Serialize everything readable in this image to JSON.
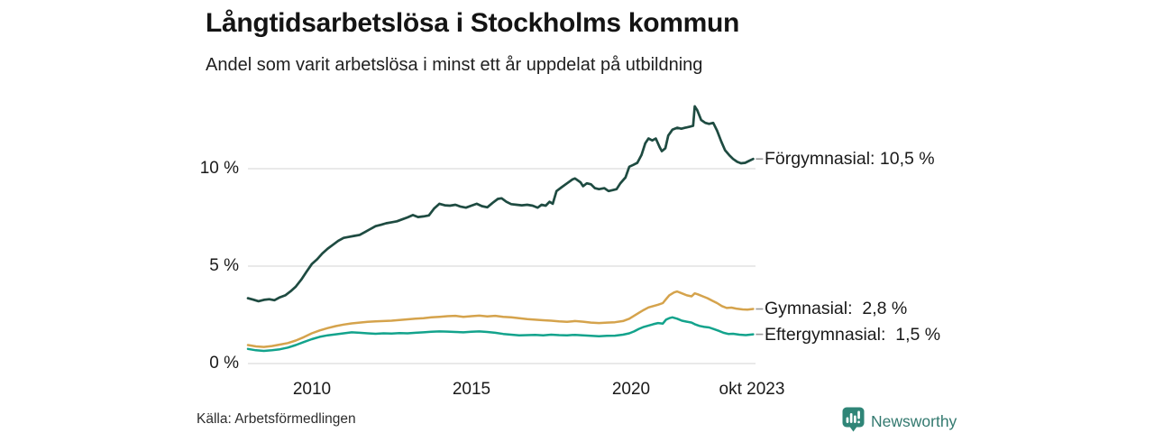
{
  "header": {
    "title": "Långtidsarbetslösa i Stockholms kommun",
    "subtitle": "Andel som varit arbetslösa i minst ett år uppdelat på utbildning"
  },
  "footer": {
    "source": "Källa: Arbetsförmedlingen",
    "brand_name": "Newsworthy",
    "brand_color": "#2F8577"
  },
  "colors": {
    "grid": "#DCDCDC",
    "connector": "#9B9B9B",
    "text": "#1A1A1A"
  },
  "chart_data": {
    "type": "line",
    "title": "Långtidsarbetslösa i Stockholms kommun",
    "subtitle": "Andel som varit arbetslösa i minst ett år uppdelat på utbildning",
    "xlabel": "",
    "ylabel": "",
    "grid": true,
    "legend_position": "end-of-line-labels",
    "x_domain": [
      2008.0,
      2023.83
    ],
    "ylim": [
      0,
      13.5
    ],
    "y_ticks": [
      {
        "value": 0,
        "label": "0 %"
      },
      {
        "value": 5,
        "label": "5 %"
      },
      {
        "value": 10,
        "label": "10 %"
      }
    ],
    "x_ticks": [
      {
        "value": 2010,
        "label": "2010"
      },
      {
        "value": 2015,
        "label": "2015"
      },
      {
        "value": 2020,
        "label": "2020"
      },
      {
        "value": 2023.79,
        "label": "okt 2023"
      }
    ],
    "series": [
      {
        "name": "Förgymnasial",
        "end_label": "Förgymnasial: 10,5 %",
        "last_value_label": "10,5 %",
        "color": "#1E4B41",
        "stroke_width": 2.7,
        "points": [
          [
            2008.0,
            3.35
          ],
          [
            2008.17,
            3.28
          ],
          [
            2008.33,
            3.2
          ],
          [
            2008.5,
            3.27
          ],
          [
            2008.67,
            3.3
          ],
          [
            2008.83,
            3.25
          ],
          [
            2009.0,
            3.4
          ],
          [
            2009.17,
            3.5
          ],
          [
            2009.33,
            3.7
          ],
          [
            2009.5,
            3.95
          ],
          [
            2009.67,
            4.3
          ],
          [
            2009.83,
            4.7
          ],
          [
            2010.0,
            5.1
          ],
          [
            2010.17,
            5.35
          ],
          [
            2010.33,
            5.65
          ],
          [
            2010.5,
            5.9
          ],
          [
            2010.67,
            6.1
          ],
          [
            2010.83,
            6.3
          ],
          [
            2011.0,
            6.45
          ],
          [
            2011.17,
            6.5
          ],
          [
            2011.33,
            6.55
          ],
          [
            2011.5,
            6.6
          ],
          [
            2011.67,
            6.75
          ],
          [
            2011.83,
            6.9
          ],
          [
            2012.0,
            7.05
          ],
          [
            2012.17,
            7.12
          ],
          [
            2012.33,
            7.2
          ],
          [
            2012.5,
            7.25
          ],
          [
            2012.67,
            7.3
          ],
          [
            2012.83,
            7.4
          ],
          [
            2013.0,
            7.5
          ],
          [
            2013.17,
            7.62
          ],
          [
            2013.33,
            7.52
          ],
          [
            2013.5,
            7.55
          ],
          [
            2013.67,
            7.6
          ],
          [
            2013.83,
            7.95
          ],
          [
            2014.0,
            8.2
          ],
          [
            2014.17,
            8.12
          ],
          [
            2014.33,
            8.1
          ],
          [
            2014.5,
            8.15
          ],
          [
            2014.67,
            8.05
          ],
          [
            2014.83,
            8.0
          ],
          [
            2015.0,
            8.1
          ],
          [
            2015.17,
            8.2
          ],
          [
            2015.33,
            8.08
          ],
          [
            2015.5,
            8.02
          ],
          [
            2015.67,
            8.25
          ],
          [
            2015.83,
            8.45
          ],
          [
            2015.95,
            8.48
          ],
          [
            2016.1,
            8.3
          ],
          [
            2016.25,
            8.18
          ],
          [
            2016.42,
            8.15
          ],
          [
            2016.58,
            8.12
          ],
          [
            2016.75,
            8.15
          ],
          [
            2016.92,
            8.1
          ],
          [
            2017.08,
            8.0
          ],
          [
            2017.2,
            8.15
          ],
          [
            2017.33,
            8.1
          ],
          [
            2017.45,
            8.3
          ],
          [
            2017.55,
            8.2
          ],
          [
            2017.67,
            8.85
          ],
          [
            2017.83,
            9.05
          ],
          [
            2018.0,
            9.25
          ],
          [
            2018.17,
            9.45
          ],
          [
            2018.25,
            9.5
          ],
          [
            2018.42,
            9.3
          ],
          [
            2018.5,
            9.1
          ],
          [
            2018.62,
            9.25
          ],
          [
            2018.75,
            9.2
          ],
          [
            2018.87,
            9.0
          ],
          [
            2019.0,
            8.95
          ],
          [
            2019.17,
            9.0
          ],
          [
            2019.3,
            8.85
          ],
          [
            2019.42,
            8.9
          ],
          [
            2019.55,
            8.95
          ],
          [
            2019.67,
            9.25
          ],
          [
            2019.83,
            9.55
          ],
          [
            2019.95,
            10.1
          ],
          [
            2020.08,
            10.2
          ],
          [
            2020.2,
            10.3
          ],
          [
            2020.33,
            10.7
          ],
          [
            2020.45,
            11.3
          ],
          [
            2020.55,
            11.55
          ],
          [
            2020.67,
            11.45
          ],
          [
            2020.78,
            11.55
          ],
          [
            2020.9,
            11.1
          ],
          [
            2020.97,
            10.9
          ],
          [
            2021.08,
            11.05
          ],
          [
            2021.17,
            11.7
          ],
          [
            2021.3,
            12.0
          ],
          [
            2021.45,
            12.1
          ],
          [
            2021.58,
            12.05
          ],
          [
            2021.7,
            12.1
          ],
          [
            2021.83,
            12.15
          ],
          [
            2021.95,
            12.2
          ],
          [
            2022.0,
            13.2
          ],
          [
            2022.08,
            13.0
          ],
          [
            2022.2,
            12.5
          ],
          [
            2022.33,
            12.35
          ],
          [
            2022.45,
            12.3
          ],
          [
            2022.58,
            12.35
          ],
          [
            2022.7,
            11.95
          ],
          [
            2022.83,
            11.4
          ],
          [
            2022.95,
            10.95
          ],
          [
            2023.08,
            10.7
          ],
          [
            2023.2,
            10.5
          ],
          [
            2023.33,
            10.35
          ],
          [
            2023.45,
            10.28
          ],
          [
            2023.58,
            10.3
          ],
          [
            2023.7,
            10.4
          ],
          [
            2023.83,
            10.5
          ]
        ]
      },
      {
        "name": "Gymnasial",
        "end_label": "Gymnasial:  2,8 %",
        "last_value_label": "2,8 %",
        "color": "#D5A34C",
        "stroke_width": 2.5,
        "points": [
          [
            2008.0,
            0.95
          ],
          [
            2008.25,
            0.88
          ],
          [
            2008.5,
            0.85
          ],
          [
            2008.75,
            0.9
          ],
          [
            2009.0,
            0.97
          ],
          [
            2009.25,
            1.05
          ],
          [
            2009.5,
            1.18
          ],
          [
            2009.75,
            1.35
          ],
          [
            2010.0,
            1.55
          ],
          [
            2010.25,
            1.7
          ],
          [
            2010.5,
            1.82
          ],
          [
            2010.75,
            1.92
          ],
          [
            2011.0,
            2.0
          ],
          [
            2011.25,
            2.06
          ],
          [
            2011.5,
            2.1
          ],
          [
            2011.75,
            2.14
          ],
          [
            2012.0,
            2.16
          ],
          [
            2012.25,
            2.18
          ],
          [
            2012.5,
            2.2
          ],
          [
            2012.75,
            2.23
          ],
          [
            2013.0,
            2.27
          ],
          [
            2013.25,
            2.3
          ],
          [
            2013.5,
            2.33
          ],
          [
            2013.75,
            2.37
          ],
          [
            2014.0,
            2.4
          ],
          [
            2014.25,
            2.43
          ],
          [
            2014.5,
            2.45
          ],
          [
            2014.75,
            2.4
          ],
          [
            2015.0,
            2.43
          ],
          [
            2015.25,
            2.46
          ],
          [
            2015.5,
            2.42
          ],
          [
            2015.75,
            2.45
          ],
          [
            2016.0,
            2.4
          ],
          [
            2016.25,
            2.37
          ],
          [
            2016.5,
            2.33
          ],
          [
            2016.75,
            2.28
          ],
          [
            2017.0,
            2.25
          ],
          [
            2017.25,
            2.22
          ],
          [
            2017.5,
            2.2
          ],
          [
            2017.75,
            2.16
          ],
          [
            2018.0,
            2.14
          ],
          [
            2018.25,
            2.18
          ],
          [
            2018.5,
            2.15
          ],
          [
            2018.75,
            2.1
          ],
          [
            2019.0,
            2.08
          ],
          [
            2019.25,
            2.1
          ],
          [
            2019.5,
            2.12
          ],
          [
            2019.75,
            2.18
          ],
          [
            2019.95,
            2.3
          ],
          [
            2020.1,
            2.45
          ],
          [
            2020.25,
            2.6
          ],
          [
            2020.4,
            2.75
          ],
          [
            2020.55,
            2.88
          ],
          [
            2020.7,
            2.95
          ],
          [
            2020.85,
            3.02
          ],
          [
            2021.0,
            3.1
          ],
          [
            2021.1,
            3.3
          ],
          [
            2021.2,
            3.5
          ],
          [
            2021.35,
            3.65
          ],
          [
            2021.45,
            3.7
          ],
          [
            2021.6,
            3.6
          ],
          [
            2021.75,
            3.5
          ],
          [
            2021.9,
            3.45
          ],
          [
            2022.0,
            3.6
          ],
          [
            2022.1,
            3.55
          ],
          [
            2022.25,
            3.45
          ],
          [
            2022.4,
            3.35
          ],
          [
            2022.55,
            3.22
          ],
          [
            2022.7,
            3.1
          ],
          [
            2022.85,
            2.95
          ],
          [
            2023.0,
            2.85
          ],
          [
            2023.15,
            2.87
          ],
          [
            2023.3,
            2.82
          ],
          [
            2023.5,
            2.78
          ],
          [
            2023.65,
            2.77
          ],
          [
            2023.83,
            2.8
          ]
        ]
      },
      {
        "name": "Eftergymnasial",
        "end_label": "Eftergymnasial:  1,5 %",
        "last_value_label": "1,5 %",
        "color": "#13A38C",
        "stroke_width": 2.5,
        "points": [
          [
            2008.0,
            0.75
          ],
          [
            2008.25,
            0.68
          ],
          [
            2008.5,
            0.65
          ],
          [
            2008.75,
            0.68
          ],
          [
            2009.0,
            0.73
          ],
          [
            2009.25,
            0.82
          ],
          [
            2009.5,
            0.95
          ],
          [
            2009.75,
            1.1
          ],
          [
            2010.0,
            1.25
          ],
          [
            2010.25,
            1.37
          ],
          [
            2010.5,
            1.45
          ],
          [
            2010.75,
            1.5
          ],
          [
            2011.0,
            1.55
          ],
          [
            2011.25,
            1.6
          ],
          [
            2011.5,
            1.58
          ],
          [
            2011.75,
            1.55
          ],
          [
            2012.0,
            1.53
          ],
          [
            2012.25,
            1.55
          ],
          [
            2012.5,
            1.54
          ],
          [
            2012.75,
            1.56
          ],
          [
            2013.0,
            1.55
          ],
          [
            2013.25,
            1.58
          ],
          [
            2013.5,
            1.6
          ],
          [
            2013.75,
            1.63
          ],
          [
            2014.0,
            1.65
          ],
          [
            2014.25,
            1.64
          ],
          [
            2014.5,
            1.62
          ],
          [
            2014.75,
            1.6
          ],
          [
            2015.0,
            1.63
          ],
          [
            2015.25,
            1.65
          ],
          [
            2015.5,
            1.62
          ],
          [
            2015.75,
            1.58
          ],
          [
            2016.0,
            1.52
          ],
          [
            2016.25,
            1.48
          ],
          [
            2016.5,
            1.45
          ],
          [
            2016.75,
            1.46
          ],
          [
            2017.0,
            1.47
          ],
          [
            2017.25,
            1.45
          ],
          [
            2017.5,
            1.48
          ],
          [
            2017.75,
            1.46
          ],
          [
            2018.0,
            1.45
          ],
          [
            2018.25,
            1.47
          ],
          [
            2018.5,
            1.45
          ],
          [
            2018.75,
            1.42
          ],
          [
            2019.0,
            1.4
          ],
          [
            2019.25,
            1.42
          ],
          [
            2019.5,
            1.43
          ],
          [
            2019.75,
            1.48
          ],
          [
            2019.95,
            1.55
          ],
          [
            2020.1,
            1.65
          ],
          [
            2020.25,
            1.78
          ],
          [
            2020.4,
            1.88
          ],
          [
            2020.55,
            1.95
          ],
          [
            2020.7,
            2.02
          ],
          [
            2020.85,
            2.08
          ],
          [
            2021.0,
            2.05
          ],
          [
            2021.1,
            2.25
          ],
          [
            2021.2,
            2.33
          ],
          [
            2021.3,
            2.37
          ],
          [
            2021.45,
            2.3
          ],
          [
            2021.6,
            2.2
          ],
          [
            2021.75,
            2.15
          ],
          [
            2021.9,
            2.1
          ],
          [
            2022.0,
            2.02
          ],
          [
            2022.15,
            1.93
          ],
          [
            2022.3,
            1.88
          ],
          [
            2022.45,
            1.85
          ],
          [
            2022.6,
            1.77
          ],
          [
            2022.75,
            1.68
          ],
          [
            2022.9,
            1.58
          ],
          [
            2023.05,
            1.52
          ],
          [
            2023.2,
            1.53
          ],
          [
            2023.4,
            1.48
          ],
          [
            2023.6,
            1.46
          ],
          [
            2023.83,
            1.5
          ]
        ]
      }
    ]
  }
}
